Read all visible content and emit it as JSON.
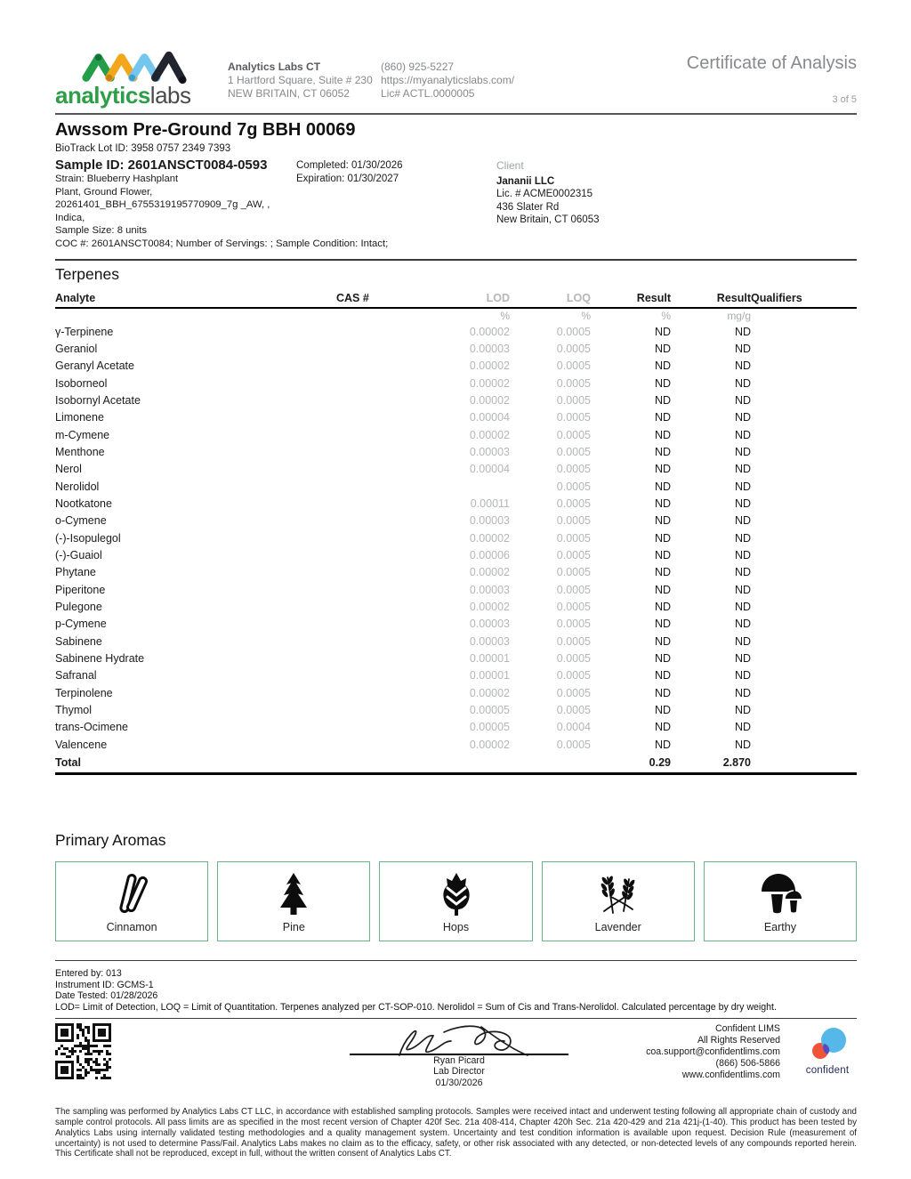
{
  "header": {
    "brand_primary": "analytics",
    "brand_secondary": "labs",
    "lab_name": "Analytics Labs CT",
    "lab_address1": "1 Hartford Square, Suite # 230",
    "lab_address2": "NEW BRITAIN, CT 06052",
    "phone": "(860) 925-5227",
    "website": "https://myanalyticslabs.com/",
    "license": "Lic# ACTL.0000005",
    "doc_title": "Certificate of Analysis",
    "page_indicator": "3 of 5"
  },
  "sample": {
    "product_title": "Awssom Pre-Ground 7g BBH 00069",
    "biotrack": "BioTrack Lot ID: 3958 0757 2349 7393",
    "sample_id": "Sample ID: 2601ANSCT0084-0593",
    "completed": "Completed: 01/30/2026",
    "expiration": "Expiration: 01/30/2027",
    "details": [
      "Strain: Blueberry Hashplant",
      "Plant, Ground Flower,",
      "20261401_BBH_6755319195770909_7g _AW, ,",
      "Indica,",
      "Sample Size: 8 units"
    ],
    "coc": "COC #: 2601ANSCT0084; Number of Servings: ; Sample Condition: Intact;",
    "client": {
      "label": "Client",
      "name": "Jananii LLC",
      "license": "Lic. # ACME0002315",
      "address1": "436 Slater Rd",
      "address2": "New Britain, CT 06053"
    }
  },
  "terpenes": {
    "section_title": "Terpenes",
    "columns": [
      "Analyte",
      "CAS #",
      "LOD",
      "LOQ",
      "Result",
      "Result",
      "Qualifiers"
    ],
    "units": [
      "",
      "",
      "%",
      "%",
      "%",
      "mg/g",
      ""
    ],
    "rows": [
      {
        "analyte": "γ-Terpinene",
        "cas": "",
        "lod": "0.00002",
        "loq": "0.0005",
        "result_pct": "ND",
        "result_mgg": "ND",
        "qualifiers": ""
      },
      {
        "analyte": "Geraniol",
        "cas": "",
        "lod": "0.00003",
        "loq": "0.0005",
        "result_pct": "ND",
        "result_mgg": "ND",
        "qualifiers": ""
      },
      {
        "analyte": "Geranyl Acetate",
        "cas": "",
        "lod": "0.00002",
        "loq": "0.0005",
        "result_pct": "ND",
        "result_mgg": "ND",
        "qualifiers": ""
      },
      {
        "analyte": "Isoborneol",
        "cas": "",
        "lod": "0.00002",
        "loq": "0.0005",
        "result_pct": "ND",
        "result_mgg": "ND",
        "qualifiers": ""
      },
      {
        "analyte": "Isobornyl Acetate",
        "cas": "",
        "lod": "0.00002",
        "loq": "0.0005",
        "result_pct": "ND",
        "result_mgg": "ND",
        "qualifiers": ""
      },
      {
        "analyte": "Limonene",
        "cas": "",
        "lod": "0.00004",
        "loq": "0.0005",
        "result_pct": "ND",
        "result_mgg": "ND",
        "qualifiers": ""
      },
      {
        "analyte": "m-Cymene",
        "cas": "",
        "lod": "0.00002",
        "loq": "0.0005",
        "result_pct": "ND",
        "result_mgg": "ND",
        "qualifiers": ""
      },
      {
        "analyte": "Menthone",
        "cas": "",
        "lod": "0.00003",
        "loq": "0.0005",
        "result_pct": "ND",
        "result_mgg": "ND",
        "qualifiers": ""
      },
      {
        "analyte": "Nerol",
        "cas": "",
        "lod": "0.00004",
        "loq": "0.0005",
        "result_pct": "ND",
        "result_mgg": "ND",
        "qualifiers": ""
      },
      {
        "analyte": "Nerolidol",
        "cas": "",
        "lod": "",
        "loq": "0.0005",
        "result_pct": "ND",
        "result_mgg": "ND",
        "qualifiers": ""
      },
      {
        "analyte": "Nootkatone",
        "cas": "",
        "lod": "0.00011",
        "loq": "0.0005",
        "result_pct": "ND",
        "result_mgg": "ND",
        "qualifiers": ""
      },
      {
        "analyte": "o-Cymene",
        "cas": "",
        "lod": "0.00003",
        "loq": "0.0005",
        "result_pct": "ND",
        "result_mgg": "ND",
        "qualifiers": ""
      },
      {
        "analyte": "(-)-Isopulegol",
        "cas": "",
        "lod": "0.00002",
        "loq": "0.0005",
        "result_pct": "ND",
        "result_mgg": "ND",
        "qualifiers": ""
      },
      {
        "analyte": "(-)-Guaiol",
        "cas": "",
        "lod": "0.00006",
        "loq": "0.0005",
        "result_pct": "ND",
        "result_mgg": "ND",
        "qualifiers": ""
      },
      {
        "analyte": "Phytane",
        "cas": "",
        "lod": "0.00002",
        "loq": "0.0005",
        "result_pct": "ND",
        "result_mgg": "ND",
        "qualifiers": ""
      },
      {
        "analyte": "Piperitone",
        "cas": "",
        "lod": "0.00003",
        "loq": "0.0005",
        "result_pct": "ND",
        "result_mgg": "ND",
        "qualifiers": ""
      },
      {
        "analyte": "Pulegone",
        "cas": "",
        "lod": "0.00002",
        "loq": "0.0005",
        "result_pct": "ND",
        "result_mgg": "ND",
        "qualifiers": ""
      },
      {
        "analyte": "p-Cymene",
        "cas": "",
        "lod": "0.00003",
        "loq": "0.0005",
        "result_pct": "ND",
        "result_mgg": "ND",
        "qualifiers": ""
      },
      {
        "analyte": "Sabinene",
        "cas": "",
        "lod": "0.00003",
        "loq": "0.0005",
        "result_pct": "ND",
        "result_mgg": "ND",
        "qualifiers": ""
      },
      {
        "analyte": "Sabinene Hydrate",
        "cas": "",
        "lod": "0.00001",
        "loq": "0.0005",
        "result_pct": "ND",
        "result_mgg": "ND",
        "qualifiers": ""
      },
      {
        "analyte": "Safranal",
        "cas": "",
        "lod": "0.00001",
        "loq": "0.0005",
        "result_pct": "ND",
        "result_mgg": "ND",
        "qualifiers": ""
      },
      {
        "analyte": "Terpinolene",
        "cas": "",
        "lod": "0.00002",
        "loq": "0.0005",
        "result_pct": "ND",
        "result_mgg": "ND",
        "qualifiers": ""
      },
      {
        "analyte": "Thymol",
        "cas": "",
        "lod": "0.00005",
        "loq": "0.0005",
        "result_pct": "ND",
        "result_mgg": "ND",
        "qualifiers": ""
      },
      {
        "analyte": "trans-Ocimene",
        "cas": "",
        "lod": "0.00005",
        "loq": "0.0004",
        "result_pct": "ND",
        "result_mgg": "ND",
        "qualifiers": ""
      },
      {
        "analyte": "Valencene",
        "cas": "",
        "lod": "0.00002",
        "loq": "0.0005",
        "result_pct": "ND",
        "result_mgg": "ND",
        "qualifiers": ""
      }
    ],
    "total": {
      "label": "Total",
      "result_pct": "0.29",
      "result_mgg": "2.870"
    }
  },
  "aromas": {
    "section_title": "Primary Aromas",
    "items": [
      {
        "label": "Cinnamon",
        "icon": "cinnamon-icon"
      },
      {
        "label": "Pine",
        "icon": "pine-icon"
      },
      {
        "label": "Hops",
        "icon": "hops-icon"
      },
      {
        "label": "Lavender",
        "icon": "lavender-icon"
      },
      {
        "label": "Earthy",
        "icon": "earthy-icon"
      }
    ]
  },
  "meta": {
    "entered_by": "Entered by: 013",
    "instrument": "Instrument ID: GCMS-1",
    "date_tested": "Date Tested: 01/28/2026",
    "note": "LOD= Limit of Detection, LOQ = Limit of Quantitation. Terpenes analyzed per CT-SOP-010. Nerolidol = Sum of Cis and Trans-Nerolidol. Calculated percentage by dry weight."
  },
  "signature": {
    "name": "Ryan Picard",
    "title": "Lab Director",
    "date": "01/30/2026"
  },
  "lims": {
    "line1": "Confident LIMS",
    "line2": "All Rights Reserved",
    "line3": "coa.support@confidentlims.com",
    "line4": "(866) 506-5866",
    "line5": "www.confidentlims.com",
    "brand": "confident"
  },
  "disclaimer": "The sampling was performed by Analytics Labs CT LLC, in accordance with established sampling protocols. Samples were received intact and underwent testing following all appropriate chain of custody and sample control protocols. All pass limits are as specified in the most recent version of Chapter 420f Sec. 21a 408-414, Chapter 420h Sec. 21a 420-429 and 21a 421j-(1-40). This product has been tested by Analytics Labs using internally validated testing methodologies and a quality management system. Uncertainty and test condition information is available upon request. Decision Rule (measurement of uncertainty) is not used to determine Pass/Fail. Analytics Labs makes no claim as to the efficacy, safety, or other risk associated with any detected, or non-detected levels of any compounds reported herein. This Certificate shall not be reproduced, except in full, without the written consent of Analytics Labs CT.",
  "colors": {
    "brand_green": "#2f9e48",
    "aroma_border_green": "#6ab388",
    "muted_gray": "#b4b6b8",
    "logo_yellow": "#f2a71b",
    "logo_blue": "#74c6ec",
    "logo_dark": "#20242e",
    "confident_blue": "#55b8e8",
    "confident_orange": "#f05438",
    "confident_purple": "#584bbd"
  }
}
